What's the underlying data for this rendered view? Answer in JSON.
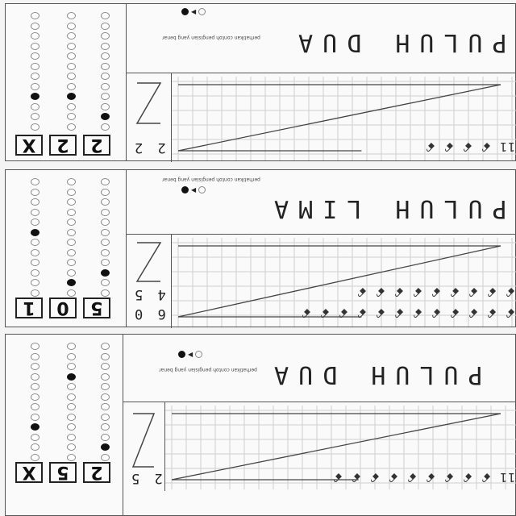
{
  "forms": [
    {
      "name": "PULUH DUA",
      "number_written": "2 2",
      "boxes": [
        "X",
        "2",
        "2"
      ],
      "filled": [
        [
          0,
          1,
          2
        ],
        [
          2,
          2,
          2
        ]
      ],
      "tally_top": "",
      "tally_bottom": "11 ꗃ ꗃ ꗃ ꗃ"
    },
    {
      "name": "PULUH LIMA",
      "number_written": "4 5",
      "number_written_2": "6 0",
      "boxes": [
        "1",
        "0",
        "5"
      ],
      "filled": [
        [
          0,
          1
        ],
        [
          2,
          2
        ]
      ],
      "tally_top": "ꗃ ꗃ ꗃ ꗃ ꗃ ꗃ ꗃ ꗃ ꗃ",
      "tally_bottom": "ꗃ ꗃ ꗃ ꗃ ꗃ ꗃ ꗃ ꗃ ꗃ ꗃ ꗃ ꗃ"
    },
    {
      "name": "PULUH DUA",
      "number_written": "2 5",
      "boxes": [
        "X",
        "5",
        "2"
      ],
      "filled": [
        [
          0,
          1
        ],
        [
          2,
          2
        ]
      ],
      "tally_top": "",
      "tally_bottom": "11 ꗃ ꗃ ꗃ ꗃ ꗃ ꗃ ꗃ ꗃ ꗃ"
    }
  ],
  "legend": {
    "note": "perhatikan contoh pengisian yang benar"
  }
}
